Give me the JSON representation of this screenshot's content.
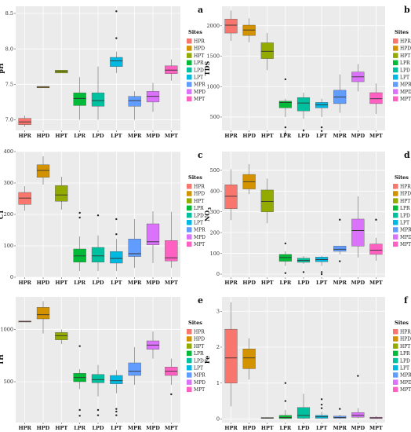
{
  "chart_data": [
    {
      "type": "box",
      "panel_label": "a",
      "ylabel": "pH",
      "ylim": [
        6.85,
        8.6
      ],
      "yticks": [
        {
          "v": 7.0,
          "t": "7.0"
        },
        {
          "v": 7.5,
          "t": "7.5"
        },
        {
          "v": 8.0,
          "t": "8.0"
        },
        {
          "v": 8.5,
          "t": "8.5"
        }
      ],
      "categories": [
        "HPR",
        "HPD",
        "HPT",
        "LPR",
        "LPD",
        "LPT",
        "MPR",
        "MPD",
        "MPT"
      ],
      "boxes": [
        {
          "q1": 6.93,
          "median": 6.97,
          "q3": 7.02,
          "lo": 6.9,
          "hi": 7.06,
          "outliers": []
        },
        {
          "q1": 7.45,
          "median": 7.46,
          "q3": 7.47,
          "lo": 7.45,
          "hi": 7.47,
          "outliers": []
        },
        {
          "q1": 7.66,
          "median": 7.68,
          "q3": 7.7,
          "lo": 7.66,
          "hi": 7.7,
          "outliers": []
        },
        {
          "q1": 7.2,
          "median": 7.3,
          "q3": 7.38,
          "lo": 7.0,
          "hi": 7.6,
          "outliers": []
        },
        {
          "q1": 7.19,
          "median": 7.27,
          "q3": 7.38,
          "lo": 7.0,
          "hi": 7.75,
          "outliers": []
        },
        {
          "q1": 7.75,
          "median": 7.83,
          "q3": 7.88,
          "lo": 7.66,
          "hi": 7.96,
          "outliers": [
            8.15,
            8.53
          ]
        },
        {
          "q1": 7.19,
          "median": 7.27,
          "q3": 7.33,
          "lo": 7.0,
          "hi": 7.4,
          "outliers": []
        },
        {
          "q1": 7.25,
          "median": 7.33,
          "q3": 7.4,
          "lo": 7.11,
          "hi": 7.52,
          "outliers": []
        },
        {
          "q1": 7.65,
          "median": 7.7,
          "q3": 7.76,
          "lo": 7.55,
          "hi": 7.85,
          "outliers": []
        }
      ]
    },
    {
      "type": "box",
      "panel_label": "b",
      "ylabel": "TDS",
      "ylim": [
        280,
        2320
      ],
      "yticks": [
        {
          "v": 500,
          "t": "500"
        },
        {
          "v": 1000,
          "t": "1000"
        },
        {
          "v": 1500,
          "t": "1500"
        },
        {
          "v": 2000,
          "t": "2000"
        }
      ],
      "categories": [
        "HPR",
        "HPD",
        "HPT",
        "LPR",
        "LPD",
        "LPT",
        "MPR",
        "MPD",
        "MPT"
      ],
      "boxes": [
        {
          "q1": 1880,
          "median": 2010,
          "q3": 2110,
          "lo": 1750,
          "hi": 2250,
          "outliers": []
        },
        {
          "q1": 1840,
          "median": 1930,
          "q3": 2010,
          "lo": 1730,
          "hi": 2120,
          "outliers": []
        },
        {
          "q1": 1460,
          "median": 1580,
          "q3": 1720,
          "lo": 1270,
          "hi": 1880,
          "outliers": []
        },
        {
          "q1": 650,
          "median": 740,
          "q3": 760,
          "lo": 500,
          "hi": 800,
          "outliers": [
            1120,
            330,
            230
          ]
        },
        {
          "q1": 600,
          "median": 730,
          "q3": 820,
          "lo": 470,
          "hi": 900,
          "outliers": [
            280
          ]
        },
        {
          "q1": 650,
          "median": 700,
          "q3": 740,
          "lo": 500,
          "hi": 800,
          "outliers": [
            330,
            270
          ]
        },
        {
          "q1": 720,
          "median": 830,
          "q3": 940,
          "lo": 570,
          "hi": 1200,
          "outliers": []
        },
        {
          "q1": 1080,
          "median": 1160,
          "q3": 1240,
          "lo": 920,
          "hi": 1370,
          "outliers": []
        },
        {
          "q1": 720,
          "median": 800,
          "q3": 900,
          "lo": 550,
          "hi": 1050,
          "outliers": []
        }
      ]
    },
    {
      "type": "box",
      "panel_label": "c",
      "ylabel": "CT",
      "ylim": [
        0,
        400
      ],
      "yticks": [
        {
          "v": 0,
          "t": "0"
        },
        {
          "v": 100,
          "t": "100"
        },
        {
          "v": 200,
          "t": "200"
        },
        {
          "v": 300,
          "t": "300"
        },
        {
          "v": 400,
          "t": "400"
        }
      ],
      "categories": [
        "HPR",
        "HPD",
        "HPT",
        "LPR",
        "LPD",
        "LPT",
        "MPR",
        "MPD",
        "MPT"
      ],
      "boxes": [
        {
          "q1": 232,
          "median": 252,
          "q3": 270,
          "lo": 212,
          "hi": 290,
          "outliers": []
        },
        {
          "q1": 318,
          "median": 340,
          "q3": 358,
          "lo": 295,
          "hi": 385,
          "outliers": []
        },
        {
          "q1": 242,
          "median": 262,
          "q3": 292,
          "lo": 215,
          "hi": 320,
          "outliers": []
        },
        {
          "q1": 48,
          "median": 68,
          "q3": 90,
          "lo": 20,
          "hi": 130,
          "outliers": [
            205,
            190
          ]
        },
        {
          "q1": 48,
          "median": 68,
          "q3": 95,
          "lo": 20,
          "hi": 133,
          "outliers": [
            197
          ]
        },
        {
          "q1": 45,
          "median": 60,
          "q3": 82,
          "lo": 20,
          "hi": 122,
          "outliers": [
            185,
            137
          ]
        },
        {
          "q1": 66,
          "median": 75,
          "q3": 122,
          "lo": 30,
          "hi": 185,
          "outliers": []
        },
        {
          "q1": 103,
          "median": 113,
          "q3": 170,
          "lo": 45,
          "hi": 210,
          "outliers": []
        },
        {
          "q1": 52,
          "median": 62,
          "q3": 117,
          "lo": 30,
          "hi": 208,
          "outliers": []
        }
      ]
    },
    {
      "type": "box",
      "panel_label": "d",
      "ylabel": "NO3",
      "ylim": [
        -15,
        590
      ],
      "yticks": [
        {
          "v": 0,
          "t": "0"
        },
        {
          "v": 100,
          "t": "100"
        },
        {
          "v": 200,
          "t": "200"
        },
        {
          "v": 300,
          "t": "300"
        },
        {
          "v": 400,
          "t": "400"
        },
        {
          "v": 500,
          "t": "500"
        }
      ],
      "categories": [
        "HPR",
        "HPD",
        "HPT",
        "LPR",
        "LPD",
        "LPT",
        "MPR",
        "MPD",
        "MPT"
      ],
      "boxes": [
        {
          "q1": 315,
          "median": 375,
          "q3": 430,
          "lo": 260,
          "hi": 505,
          "outliers": []
        },
        {
          "q1": 410,
          "median": 445,
          "q3": 480,
          "lo": 385,
          "hi": 530,
          "outliers": []
        },
        {
          "q1": 300,
          "median": 350,
          "q3": 405,
          "lo": 245,
          "hi": 460,
          "outliers": []
        },
        {
          "q1": 62,
          "median": 80,
          "q3": 95,
          "lo": 40,
          "hi": 110,
          "outliers": [
            148,
            5
          ]
        },
        {
          "q1": 57,
          "median": 66,
          "q3": 77,
          "lo": 50,
          "hi": 87,
          "outliers": [
            10
          ]
        },
        {
          "q1": 60,
          "median": 70,
          "q3": 82,
          "lo": 40,
          "hi": 88,
          "outliers": [
            10,
            0
          ]
        },
        {
          "q1": 110,
          "median": 120,
          "q3": 135,
          "lo": 95,
          "hi": 135,
          "outliers": [
            262,
            62
          ]
        },
        {
          "q1": 135,
          "median": 210,
          "q3": 265,
          "lo": 80,
          "hi": 375,
          "outliers": []
        },
        {
          "q1": 95,
          "median": 115,
          "q3": 145,
          "lo": 65,
          "hi": 175,
          "outliers": [
            262
          ]
        }
      ]
    },
    {
      "type": "box",
      "panel_label": "e",
      "ylabel": "TH",
      "ylim": [
        110,
        1310
      ],
      "yticks": [
        {
          "v": 500,
          "t": "500"
        },
        {
          "v": 1000,
          "t": "1000"
        }
      ],
      "categories": [
        "HPR",
        "HPD",
        "HPT",
        "LPR",
        "LPD",
        "LPT",
        "MPR",
        "MPD",
        "MPT"
      ],
      "boxes": [
        {
          "q1": 1070,
          "median": 1075,
          "q3": 1080,
          "lo": 1070,
          "hi": 1080,
          "outliers": []
        },
        {
          "q1": 1100,
          "median": 1140,
          "q3": 1210,
          "lo": 960,
          "hi": 1270,
          "outliers": []
        },
        {
          "q1": 900,
          "median": 940,
          "q3": 970,
          "lo": 860,
          "hi": 1000,
          "outliers": []
        },
        {
          "q1": 500,
          "median": 540,
          "q3": 580,
          "lo": 430,
          "hi": 620,
          "outliers": [
            840,
            230,
            175
          ]
        },
        {
          "q1": 490,
          "median": 520,
          "q3": 570,
          "lo": 360,
          "hi": 660,
          "outliers": [
            230,
            180
          ]
        },
        {
          "q1": 480,
          "median": 510,
          "q3": 560,
          "lo": 390,
          "hi": 610,
          "outliers": [
            240,
            215,
            180
          ]
        },
        {
          "q1": 560,
          "median": 600,
          "q3": 680,
          "lo": 470,
          "hi": 830,
          "outliers": []
        },
        {
          "q1": 810,
          "median": 850,
          "q3": 890,
          "lo": 720,
          "hi": 980,
          "outliers": []
        },
        {
          "q1": 560,
          "median": 600,
          "q3": 640,
          "lo": 470,
          "hi": 720,
          "outliers": [
            380
          ]
        }
      ]
    },
    {
      "type": "box",
      "panel_label": "f",
      "ylabel": "Fe",
      "ylim": [
        -0.1,
        3.4
      ],
      "yticks": [
        {
          "v": 0,
          "t": "0"
        },
        {
          "v": 1,
          "t": "1"
        },
        {
          "v": 2,
          "t": "2"
        },
        {
          "v": 3,
          "t": "3"
        }
      ],
      "categories": [
        "HPR",
        "HPD",
        "HPT",
        "LPR",
        "LPD",
        "LPT",
        "MPR",
        "MPD",
        "MPT"
      ],
      "boxes": [
        {
          "q1": 1.0,
          "median": 1.7,
          "q3": 2.5,
          "lo": 0.35,
          "hi": 3.25,
          "outliers": []
        },
        {
          "q1": 1.4,
          "median": 1.7,
          "q3": 1.95,
          "lo": 1.1,
          "hi": 2.25,
          "outliers": []
        },
        {
          "q1": 0.02,
          "median": 0.03,
          "q3": 0.04,
          "lo": 0.01,
          "hi": 0.05,
          "outliers": []
        },
        {
          "q1": 0.01,
          "median": 0.04,
          "q3": 0.1,
          "lo": 0.0,
          "hi": 0.25,
          "outliers": [
            1.0,
            0.5
          ]
        },
        {
          "q1": 0.02,
          "median": 0.1,
          "q3": 0.32,
          "lo": 0.0,
          "hi": 0.7,
          "outliers": []
        },
        {
          "q1": 0.02,
          "median": 0.06,
          "q3": 0.1,
          "lo": 0.0,
          "hi": 0.2,
          "outliers": [
            0.55,
            0.4,
            0.3
          ]
        },
        {
          "q1": 0.02,
          "median": 0.04,
          "q3": 0.08,
          "lo": 0.0,
          "hi": 0.12,
          "outliers": [
            0.28
          ]
        },
        {
          "q1": 0.05,
          "median": 0.1,
          "q3": 0.18,
          "lo": 0.02,
          "hi": 0.3,
          "outliers": [
            1.2
          ]
        },
        {
          "q1": 0.01,
          "median": 0.03,
          "q3": 0.05,
          "lo": 0.0,
          "hi": 0.08,
          "outliers": []
        }
      ]
    }
  ],
  "legend": {
    "title": "Sites",
    "items": [
      "HPR",
      "HPD",
      "HPT",
      "LPR",
      "LPD",
      "LPT",
      "MPR",
      "MPD",
      "MPT"
    ]
  },
  "colors": {
    "HPR": "#F8766D",
    "HPD": "#D39200",
    "HPT": "#93AA00",
    "LPR": "#00BA38",
    "LPD": "#00C19F",
    "LPT": "#00B9E3",
    "MPR": "#619CFF",
    "MPD": "#DB72FB",
    "MPT": "#FF61C3"
  }
}
